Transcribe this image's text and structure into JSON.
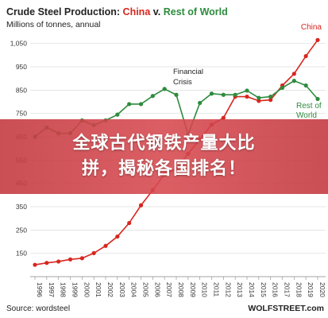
{
  "chart_data": {
    "type": "line",
    "title_part1": "Crude Steel Production: ",
    "title_china": "China",
    "title_mid": " v. ",
    "title_row": "Rest of World",
    "subtitle": "Millions of tonnes, annual",
    "ylim": [
      50,
      1100
    ],
    "yticks": [
      150,
      250,
      350,
      450,
      550,
      650,
      750,
      850,
      950,
      1050
    ],
    "ytick_labels": [
      "150",
      "250",
      "350",
      "450",
      "550",
      "650",
      "750",
      "850",
      "950",
      "1,050"
    ],
    "x": [
      "1996",
      "1997",
      "1998",
      "1999",
      "2000",
      "2001",
      "2002",
      "2003",
      "2004",
      "2005",
      "2006",
      "2007",
      "2008",
      "2009",
      "2010",
      "2011",
      "2012",
      "2013",
      "2014",
      "2015",
      "2016",
      "2017",
      "2018",
      "2019",
      "2020"
    ],
    "series": [
      {
        "name": "China",
        "color": "#d7261e",
        "values": [
          101,
          109,
          115,
          124,
          129,
          151,
          182,
          222,
          280,
          356,
          421,
          489,
          512,
          577,
          639,
          702,
          731,
          822,
          822,
          804,
          808,
          870,
          920,
          996,
          1065
        ]
      },
      {
        "name": "Rest of World",
        "color": "#2e8b3e",
        "values": [
          650,
          690,
          665,
          665,
          720,
          700,
          720,
          745,
          790,
          790,
          825,
          855,
          830,
          660,
          795,
          835,
          830,
          830,
          848,
          817,
          822,
          860,
          890,
          870,
          812
        ]
      }
    ],
    "annotation": {
      "line1": "Financial",
      "line2": "Crisis"
    },
    "source": "Source: wordsteel",
    "credit": "WOLFSTREET.com",
    "grid": true
  },
  "overlay": {
    "line1": "全球古代钢铁产量大比",
    "line2": "拼，揭秘各国排名！"
  }
}
